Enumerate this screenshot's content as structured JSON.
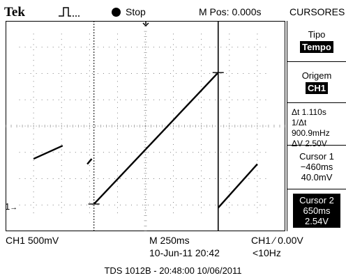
{
  "header": {
    "brand": "Tek",
    "run_state": "Stop",
    "position_readout": "M Pos: 0.000s",
    "menu_title": "CURSORES"
  },
  "side_menu": {
    "tipo_label": "Tipo",
    "tipo_value": "Tempo",
    "origem_label": "Origem",
    "origem_value": "CH1",
    "delta_t": "Δt 1.110s",
    "inv_delta_t": "1/Δt 900.9mHz",
    "delta_v": "ΔV 2.50V",
    "cursor1_title": "Cursor 1",
    "cursor1_time": "−460ms",
    "cursor1_volt": "40.0mV",
    "cursor2_title": "Cursor 2",
    "cursor2_time": "650ms",
    "cursor2_volt": "2.54V"
  },
  "status": {
    "ch1_scale": "CH1  500mV",
    "timebase": "M 250ms",
    "date_time": "10-Jun-11 20:42",
    "trigger": "CH1 ∕ 0.00V",
    "trigger_freq": "<10Hz",
    "channel_marker": "1"
  },
  "footer": "TDS 1012B - 20:48:00   10/06/2011",
  "waveform": {
    "segments": [
      {
        "t0": -1.0,
        "v0": 0.9,
        "t1": -0.74,
        "v1": 1.15
      },
      {
        "t0": -0.52,
        "v0": 0.8,
        "t1": -0.48,
        "v1": 0.9
      },
      {
        "t0": -0.46,
        "v0": 0.04,
        "t1": 0.65,
        "v1": 2.54
      },
      {
        "t0": 0.65,
        "v0": -0.03,
        "t1": 1.0,
        "v1": 0.8
      }
    ],
    "cursor1_t": -0.46,
    "cursor2_t": 0.65
  }
}
